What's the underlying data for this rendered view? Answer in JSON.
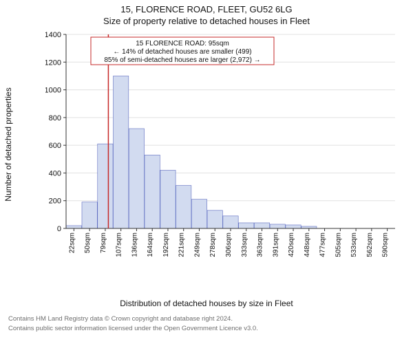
{
  "header": {
    "main_title": "15, FLORENCE ROAD, FLEET, GU52 6LG",
    "sub_title": "Size of property relative to detached houses in Fleet"
  },
  "axes": {
    "ylabel": "Number of detached properties",
    "xlabel": "Distribution of detached houses by size in Fleet",
    "label_fontsize": 12,
    "ytick_fontsize": 11,
    "xtick_fontsize": 10
  },
  "callout": {
    "line1": "15 FLORENCE ROAD: 95sqm",
    "line2": "← 14% of detached houses are smaller (499)",
    "line3": "85% of semi-detached houses are larger (2,972) →"
  },
  "footer": {
    "line1": "Contains HM Land Registry data © Crown copyright and database right 2024.",
    "line2": "Contains public sector information licensed under the Open Government Licence v3.0."
  },
  "chart": {
    "type": "histogram",
    "background_color": "#ffffff",
    "grid_color": "#e0e0e0",
    "bar_fill": "#d2dbf0",
    "bar_stroke": "#5c6bc0",
    "refline_color": "#c62828",
    "refline_x_value": 95,
    "ylim": [
      0,
      1400
    ],
    "ytick_step": 200,
    "yticks": [
      0,
      200,
      400,
      600,
      800,
      1000,
      1200,
      1400
    ],
    "x_categories": [
      "22sqm",
      "50sqm",
      "79sqm",
      "107sqm",
      "136sqm",
      "164sqm",
      "192sqm",
      "221sqm",
      "249sqm",
      "278sqm",
      "306sqm",
      "333sqm",
      "363sqm",
      "391sqm",
      "420sqm",
      "448sqm",
      "477sqm",
      "505sqm",
      "533sqm",
      "562sqm",
      "590sqm"
    ],
    "bar_values": [
      20,
      190,
      610,
      1100,
      720,
      530,
      420,
      310,
      210,
      130,
      90,
      40,
      40,
      30,
      25,
      15,
      0,
      0,
      0,
      0,
      0
    ],
    "bar_width_ratio": 0.98
  }
}
